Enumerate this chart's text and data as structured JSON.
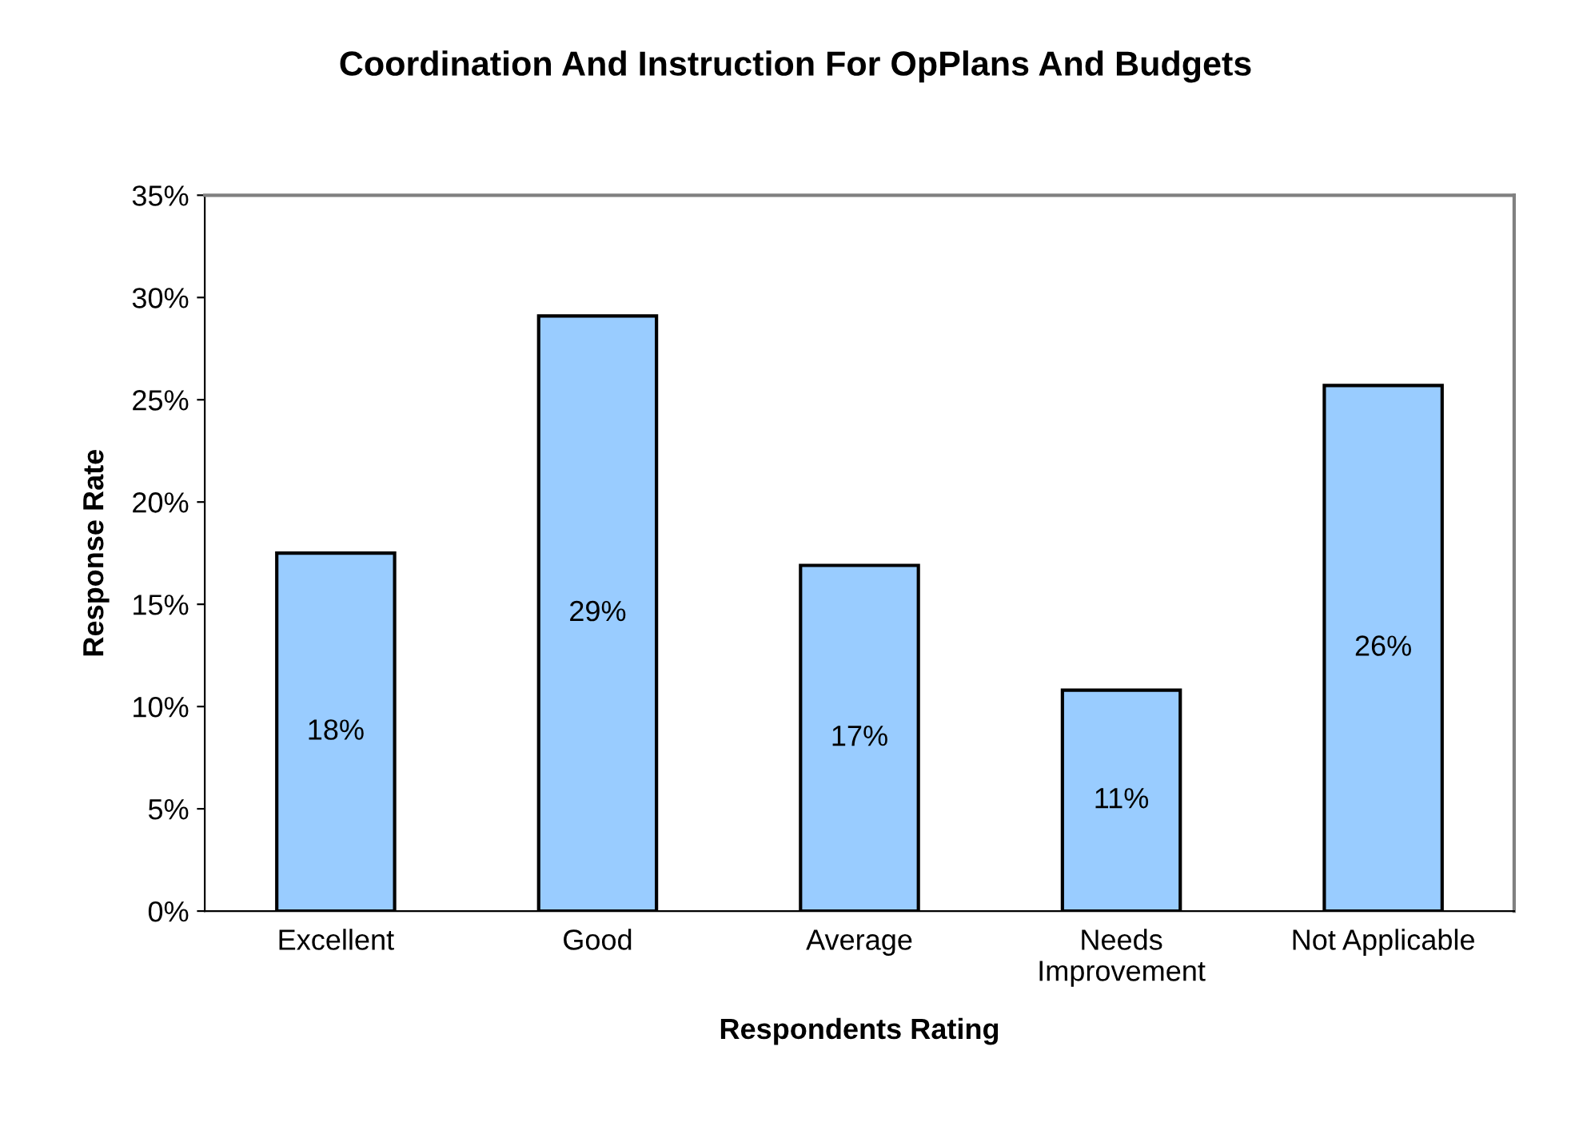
{
  "chart_data": {
    "type": "bar",
    "title": "Coordination And Instruction For OpPlans And Budgets",
    "xlabel": "Respondents Rating",
    "ylabel": "Response Rate",
    "categories": [
      "Excellent",
      "Good",
      "Average",
      "Needs\nImprovement",
      "Not Applicable"
    ],
    "values": [
      17.5,
      29.1,
      16.9,
      10.8,
      25.7
    ],
    "value_labels": [
      "18%",
      "29%",
      "17%",
      "11%",
      "26%"
    ],
    "color": "#99ccff",
    "ylim": [
      0,
      35
    ],
    "yticks": [
      {
        "value": 0,
        "label": "0%"
      },
      {
        "value": 5,
        "label": "5%"
      },
      {
        "value": 10,
        "label": "10%"
      },
      {
        "value": 15,
        "label": "15%"
      },
      {
        "value": 20,
        "label": "20%"
      },
      {
        "value": 25,
        "label": "25%"
      },
      {
        "value": 30,
        "label": "30%"
      },
      {
        "value": 35,
        "label": "35%"
      }
    ],
    "grid": false,
    "legend": false
  }
}
